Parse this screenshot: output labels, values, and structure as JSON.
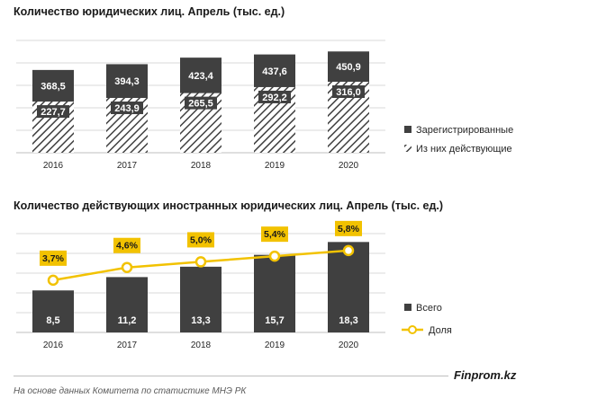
{
  "colors": {
    "bar_dark": "#404040",
    "hatch_bg": "#ffffff",
    "hatch_line": "#404040",
    "accent_yellow": "#f2c200",
    "grid": "#d9d9d9"
  },
  "chart_data": [
    {
      "type": "bar",
      "title": "Количество юридических лиц. Апрель (тыс. ед.)",
      "categories": [
        "2016",
        "2017",
        "2018",
        "2019",
        "2020"
      ],
      "series": [
        {
          "name": "Зарегистрированные",
          "values": [
            368.5,
            394.3,
            423.4,
            437.6,
            450.9
          ],
          "labels": [
            "368,5",
            "394,3",
            "423,4",
            "437,6",
            "450,9"
          ]
        },
        {
          "name": "Из них действующие",
          "values": [
            227.7,
            243.9,
            265.5,
            292.2,
            316.0
          ],
          "labels": [
            "227,7",
            "243,9",
            "265,5",
            "292,2",
            "316,0"
          ]
        }
      ],
      "ylim": [
        0,
        500
      ],
      "grid": true,
      "legend": "right"
    },
    {
      "type": "bar",
      "title": "Количество действующих иностранных юридических лиц. Апрель (тыс. ед.)",
      "categories": [
        "2016",
        "2017",
        "2018",
        "2019",
        "2020"
      ],
      "series": [
        {
          "name": "Всего",
          "values": [
            8.5,
            11.2,
            13.3,
            15.7,
            18.3
          ],
          "labels": [
            "8,5",
            "11,2",
            "13,3",
            "15,7",
            "18,3"
          ]
        },
        {
          "name": "Доля",
          "type": "line",
          "values": [
            3.7,
            4.6,
            5.0,
            5.4,
            5.8
          ],
          "labels": [
            "3,7%",
            "4,6%",
            "5,0%",
            "5,4%",
            "5,8%"
          ]
        }
      ],
      "ylim": [
        0,
        20
      ],
      "share_ylim": [
        0,
        7
      ],
      "grid": true,
      "legend": "right"
    }
  ],
  "footer": {
    "brand": "Finprom.kz",
    "source": "На основе данных Комитета по статистике МНЭ РК"
  }
}
